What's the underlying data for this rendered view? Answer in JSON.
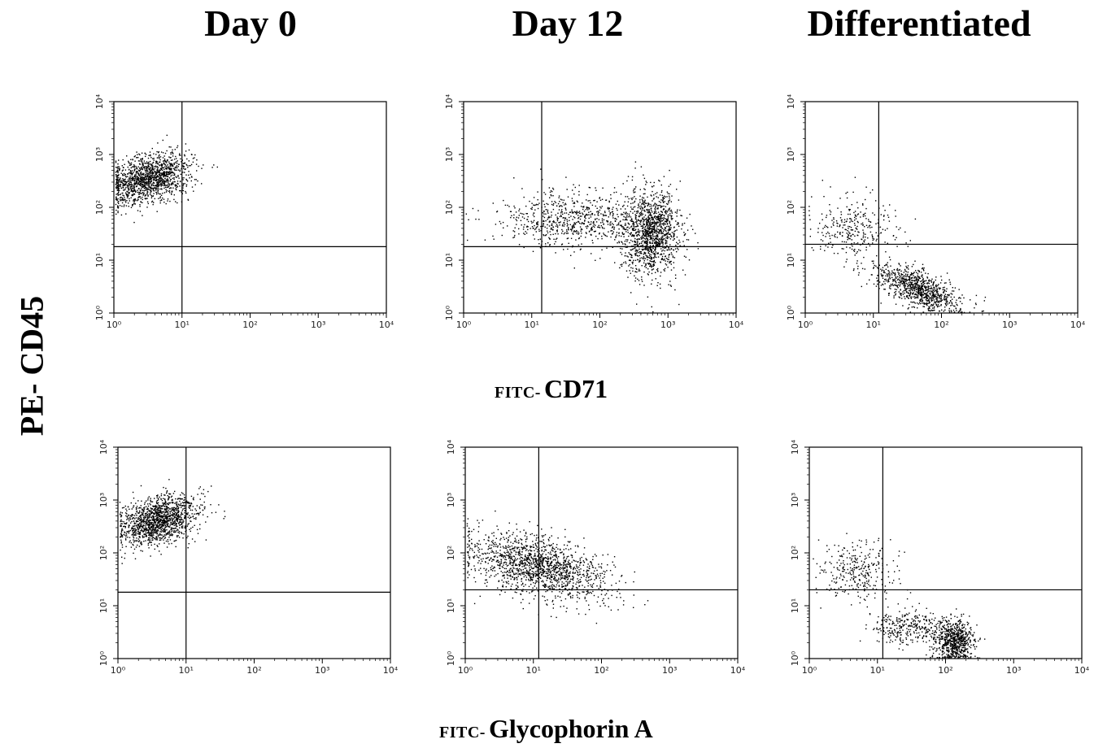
{
  "column_titles": [
    "Day 0",
    "Day 12",
    "Differentiated"
  ],
  "y_axis_label": "PE- CD45",
  "row_labels": [
    {
      "prefix": "FITC-",
      "marker": "CD71"
    },
    {
      "prefix": "FITC-",
      "marker": "Glycophorin A"
    }
  ],
  "tick_labels": [
    "10⁰",
    "10¹",
    "10²",
    "10³",
    "10⁴"
  ],
  "chart_data": [
    {
      "type": "scatter",
      "title": "Day 0",
      "row": "CD71",
      "xlabel": "FITC- CD71",
      "ylabel": "PE- CD45",
      "xscale": "log",
      "yscale": "log",
      "xlim": [
        1,
        10000
      ],
      "ylim": [
        1,
        10000
      ],
      "quadrant_gate": {
        "x": 10,
        "y": 18
      },
      "populations": [
        {
          "x_center": 3.2,
          "y_center": 350,
          "x_spread_log": 0.3,
          "y_spread_log": 0.22,
          "tilt": 0.25,
          "count": 1400
        }
      ]
    },
    {
      "type": "scatter",
      "title": "Day 12",
      "row": "CD71",
      "xlabel": "FITC- CD71",
      "ylabel": "PE- CD45",
      "xscale": "log",
      "yscale": "log",
      "xlim": [
        1,
        10000
      ],
      "ylim": [
        1,
        10000
      ],
      "quadrant_gate": {
        "x": 14,
        "y": 18
      },
      "populations": [
        {
          "x_center": 550,
          "y_center": 35,
          "x_spread_log": 0.22,
          "y_spread_log": 0.4,
          "tilt": 0.0,
          "count": 1300
        },
        {
          "x_center": 40,
          "y_center": 60,
          "x_spread_log": 0.55,
          "y_spread_log": 0.28,
          "tilt": 0.0,
          "count": 700
        }
      ]
    },
    {
      "type": "scatter",
      "title": "Differentiated",
      "row": "CD71",
      "xlabel": "FITC- CD71",
      "ylabel": "PE- CD45",
      "xscale": "log",
      "yscale": "log",
      "xlim": [
        1,
        10000
      ],
      "ylim": [
        1,
        10000
      ],
      "quadrant_gate": {
        "x": 12,
        "y": 20
      },
      "populations": [
        {
          "x_center": 45,
          "y_center": 3,
          "x_spread_log": 0.3,
          "y_spread_log": 0.18,
          "tilt": -0.45,
          "count": 900
        },
        {
          "x_center": 5,
          "y_center": 40,
          "x_spread_log": 0.3,
          "y_spread_log": 0.3,
          "tilt": 0.0,
          "count": 300
        }
      ]
    },
    {
      "type": "scatter",
      "title": "Day 0",
      "row": "Glycophorin A",
      "xlabel": "FITC- Glycophorin A",
      "ylabel": "PE- CD45",
      "xscale": "log",
      "yscale": "log",
      "xlim": [
        1,
        10000
      ],
      "ylim": [
        1,
        10000
      ],
      "quadrant_gate": {
        "x": 10,
        "y": 18
      },
      "populations": [
        {
          "x_center": 4,
          "y_center": 420,
          "x_spread_log": 0.28,
          "y_spread_log": 0.22,
          "tilt": 0.3,
          "count": 1400
        }
      ]
    },
    {
      "type": "scatter",
      "title": "Day 12",
      "row": "Glycophorin A",
      "xlabel": "FITC- Glycophorin A",
      "ylabel": "PE- CD45",
      "xscale": "log",
      "yscale": "log",
      "xlim": [
        1,
        10000
      ],
      "ylim": [
        1,
        10000
      ],
      "quadrant_gate": {
        "x": 12,
        "y": 20
      },
      "populations": [
        {
          "x_center": 12,
          "y_center": 55,
          "x_spread_log": 0.5,
          "y_spread_log": 0.28,
          "tilt": -0.3,
          "count": 1500
        }
      ]
    },
    {
      "type": "scatter",
      "title": "Differentiated",
      "row": "Glycophorin A",
      "xlabel": "FITC- Glycophorin A",
      "ylabel": "PE- CD45",
      "xscale": "log",
      "yscale": "log",
      "xlim": [
        1,
        10000
      ],
      "ylim": [
        1,
        10000
      ],
      "quadrant_gate": {
        "x": 12,
        "y": 20
      },
      "populations": [
        {
          "x_center": 130,
          "y_center": 2.2,
          "x_spread_log": 0.15,
          "y_spread_log": 0.2,
          "tilt": 0.0,
          "count": 700
        },
        {
          "x_center": 25,
          "y_center": 4,
          "x_spread_log": 0.25,
          "y_spread_log": 0.15,
          "tilt": 0.0,
          "count": 300
        },
        {
          "x_center": 5,
          "y_center": 45,
          "x_spread_log": 0.28,
          "y_spread_log": 0.3,
          "tilt": 0.0,
          "count": 300
        }
      ]
    }
  ]
}
